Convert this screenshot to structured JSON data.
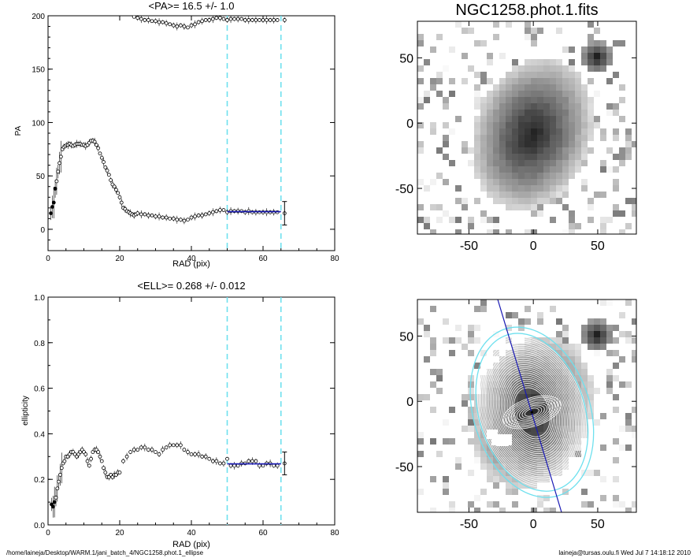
{
  "footer": {
    "path": "/home/laineja/Desktop/WARM.1/jani_batch_4/NGC1258.phot.1_ellipse",
    "user_time": "laineja@tursas.oulu.fi  Wed Jul  7 14:18:12 2010"
  },
  "images": {
    "title": "NGC1258.phot.1.fits",
    "ticks_x": [
      "-50",
      "0",
      "50"
    ],
    "ticks_y": [
      "50",
      "0",
      "-50"
    ]
  },
  "colors": {
    "markers": "#000000",
    "fit_line": "#1a1ab4",
    "marker_lines": "#6ee0ee",
    "axis": "#000000"
  },
  "chart_data": [
    {
      "type": "scatter",
      "title": "<PA>=  16.5 +/-   1.0",
      "xlabel": "RAD (pix)",
      "ylabel": "PA",
      "xlim": [
        0,
        80
      ],
      "ylim": [
        -20,
        200
      ],
      "x_ticks": [
        "0",
        "20",
        "40",
        "60",
        "80"
      ],
      "y_ticks": [
        "0",
        "50",
        "100",
        "150",
        "200"
      ],
      "vlines": [
        50,
        65
      ],
      "mean_line": {
        "x": [
          50,
          65
        ],
        "y": 16.5
      },
      "series": [
        {
          "points": [
            [
              0.8,
              15
            ],
            [
              1.2,
              21
            ],
            [
              1.6,
              25
            ],
            [
              2.0,
              38
            ],
            [
              2.4,
              45
            ],
            [
              2.8,
              54
            ],
            [
              3.2,
              62
            ],
            [
              3.6,
              68
            ],
            [
              4.0,
              75
            ],
            [
              4.4,
              77
            ],
            [
              4.8,
              78
            ],
            [
              5.2,
              79
            ],
            [
              5.6,
              79
            ],
            [
              6.0,
              80
            ],
            [
              6.5,
              79
            ],
            [
              7.0,
              78
            ],
            [
              7.5,
              79
            ],
            [
              8.0,
              80
            ],
            [
              8.5,
              80
            ],
            [
              9.0,
              80
            ],
            [
              9.5,
              79
            ],
            [
              10.0,
              79
            ],
            [
              10.5,
              78
            ],
            [
              11.0,
              79
            ],
            [
              11.5,
              81
            ],
            [
              12.0,
              83
            ],
            [
              12.5,
              83
            ],
            [
              13.0,
              82
            ],
            [
              13.5,
              79
            ],
            [
              14.0,
              76
            ],
            [
              14.5,
              71
            ],
            [
              15.0,
              67
            ],
            [
              15.5,
              63
            ],
            [
              16.0,
              58
            ],
            [
              16.5,
              55
            ],
            [
              17.0,
              51
            ],
            [
              17.5,
              46
            ],
            [
              18.0,
              42
            ],
            [
              18.5,
              40
            ],
            [
              19.0,
              37
            ],
            [
              19.5,
              34
            ],
            [
              20.0,
              30
            ],
            [
              20.5,
              25
            ],
            [
              21.0,
              20
            ],
            [
              21.5,
              19
            ],
            [
              22.0,
              17
            ],
            [
              22.5,
              16
            ],
            [
              23.0,
              15
            ],
            [
              23.5,
              14
            ],
            [
              24.0,
              13
            ],
            [
              24.5,
              14
            ],
            [
              25.0,
              15
            ],
            [
              26.0,
              14
            ],
            [
              27.0,
              14
            ],
            [
              28.0,
              13
            ],
            [
              29.0,
              13
            ],
            [
              30.0,
              12
            ],
            [
              31.0,
              12
            ],
            [
              32.0,
              11
            ],
            [
              33.0,
              11
            ],
            [
              34.0,
              10
            ],
            [
              35.0,
              10
            ],
            [
              36.0,
              9
            ],
            [
              37.0,
              9
            ],
            [
              38.0,
              8
            ],
            [
              39.0,
              9
            ],
            [
              40.0,
              11
            ],
            [
              41.0,
              12
            ],
            [
              42.0,
              13
            ],
            [
              43.0,
              13
            ],
            [
              44.0,
              14
            ],
            [
              45.0,
              15
            ],
            [
              46.0,
              16
            ],
            [
              47.0,
              17
            ],
            [
              48.0,
              18
            ],
            [
              49.0,
              18
            ],
            [
              50.0,
              16
            ],
            [
              51.0,
              17
            ],
            [
              52.0,
              17
            ],
            [
              53.0,
              17
            ],
            [
              54.0,
              17
            ],
            [
              55.0,
              16
            ],
            [
              56.0,
              17
            ],
            [
              57.0,
              16
            ],
            [
              58.0,
              16
            ],
            [
              59.0,
              16
            ],
            [
              60.0,
              16
            ],
            [
              61.0,
              16
            ],
            [
              62.0,
              16
            ],
            [
              63.0,
              16
            ],
            [
              64.0,
              16
            ],
            [
              66.0,
              15
            ]
          ]
        },
        {
          "points": [
            [
              24.0,
              199
            ],
            [
              25.0,
              198
            ],
            [
              26.0,
              197
            ],
            [
              27.0,
              196
            ],
            [
              28.0,
              196
            ],
            [
              29.0,
              195
            ],
            [
              30.0,
              195
            ],
            [
              31.0,
              194
            ],
            [
              32.0,
              194
            ],
            [
              33.0,
              193
            ],
            [
              34.0,
              192
            ],
            [
              35.0,
              191
            ],
            [
              36.0,
              190
            ],
            [
              37.0,
              191
            ],
            [
              38.0,
              190
            ],
            [
              39.0,
              189
            ],
            [
              40.0,
              191
            ],
            [
              41.0,
              192
            ],
            [
              42.0,
              194
            ],
            [
              43.0,
              195
            ],
            [
              44.0,
              196
            ],
            [
              45.0,
              196
            ],
            [
              46.0,
              197
            ],
            [
              47.0,
              198
            ],
            [
              48.0,
              198
            ],
            [
              49.0,
              197
            ],
            [
              50.0,
              196
            ],
            [
              51.0,
              197
            ],
            [
              52.0,
              197
            ],
            [
              53.0,
              197
            ],
            [
              54.0,
              197
            ],
            [
              55.0,
              196
            ],
            [
              56.0,
              196
            ],
            [
              57.0,
              196
            ],
            [
              58.0,
              196
            ],
            [
              59.0,
              196
            ],
            [
              60.0,
              196
            ],
            [
              61.0,
              196
            ],
            [
              62.0,
              196
            ],
            [
              63.0,
              196
            ],
            [
              64.0,
              196
            ],
            [
              66.0,
              196
            ]
          ]
        }
      ]
    },
    {
      "type": "scatter",
      "title": "<ELL>= 0.268 +/-  0.012",
      "xlabel": "RAD (pix)",
      "ylabel": "ellipticity",
      "xlim": [
        0,
        80
      ],
      "ylim": [
        0,
        1
      ],
      "x_ticks": [
        "0",
        "20",
        "40",
        "60",
        "80"
      ],
      "y_ticks": [
        "0.0",
        "0.2",
        "0.4",
        "0.6",
        "0.8",
        "1.0"
      ],
      "vlines": [
        50,
        65
      ],
      "mean_line": {
        "x": [
          50,
          65
        ],
        "y": 0.268
      },
      "series": [
        {
          "points": [
            [
              1.0,
              0.09
            ],
            [
              1.4,
              0.08
            ],
            [
              1.8,
              0.1
            ],
            [
              2.2,
              0.12
            ],
            [
              2.6,
              0.16
            ],
            [
              3.0,
              0.19
            ],
            [
              3.4,
              0.22
            ],
            [
              3.8,
              0.25
            ],
            [
              4.2,
              0.27
            ],
            [
              4.6,
              0.28
            ],
            [
              5.0,
              0.3
            ],
            [
              5.5,
              0.3
            ],
            [
              6.0,
              0.31
            ],
            [
              6.5,
              0.32
            ],
            [
              7.0,
              0.32
            ],
            [
              7.5,
              0.31
            ],
            [
              8.0,
              0.3
            ],
            [
              8.5,
              0.31
            ],
            [
              9.0,
              0.32
            ],
            [
              9.5,
              0.33
            ],
            [
              10.0,
              0.32
            ],
            [
              10.5,
              0.31
            ],
            [
              11.0,
              0.28
            ],
            [
              11.5,
              0.26
            ],
            [
              12.0,
              0.29
            ],
            [
              12.5,
              0.32
            ],
            [
              13.0,
              0.33
            ],
            [
              13.5,
              0.33
            ],
            [
              14.0,
              0.32
            ],
            [
              14.5,
              0.3
            ],
            [
              15.0,
              0.28
            ],
            [
              15.5,
              0.25
            ],
            [
              16.0,
              0.23
            ],
            [
              16.5,
              0.21
            ],
            [
              17.0,
              0.21
            ],
            [
              17.5,
              0.22
            ],
            [
              18.0,
              0.21
            ],
            [
              18.5,
              0.22
            ],
            [
              19.0,
              0.22
            ],
            [
              19.5,
              0.23
            ],
            [
              20.0,
              0.23
            ],
            [
              21.0,
              0.28
            ],
            [
              22.0,
              0.3
            ],
            [
              23.0,
              0.32
            ],
            [
              24.0,
              0.33
            ],
            [
              25.0,
              0.33
            ],
            [
              26.0,
              0.34
            ],
            [
              27.0,
              0.34
            ],
            [
              28.0,
              0.33
            ],
            [
              29.0,
              0.33
            ],
            [
              30.0,
              0.32
            ],
            [
              31.0,
              0.31
            ],
            [
              32.0,
              0.33
            ],
            [
              33.0,
              0.34
            ],
            [
              34.0,
              0.35
            ],
            [
              35.0,
              0.35
            ],
            [
              36.0,
              0.35
            ],
            [
              37.0,
              0.35
            ],
            [
              38.0,
              0.33
            ],
            [
              39.0,
              0.32
            ],
            [
              40.0,
              0.31
            ],
            [
              41.0,
              0.31
            ],
            [
              42.0,
              0.31
            ],
            [
              43.0,
              0.3
            ],
            [
              44.0,
              0.3
            ],
            [
              45.0,
              0.29
            ],
            [
              46.0,
              0.28
            ],
            [
              47.0,
              0.28
            ],
            [
              48.0,
              0.27
            ],
            [
              49.0,
              0.27
            ],
            [
              50.0,
              0.29
            ],
            [
              51.0,
              0.26
            ],
            [
              52.0,
              0.26
            ],
            [
              53.0,
              0.26
            ],
            [
              54.0,
              0.27
            ],
            [
              55.0,
              0.27
            ],
            [
              56.0,
              0.28
            ],
            [
              57.0,
              0.28
            ],
            [
              58.0,
              0.28
            ],
            [
              59.0,
              0.26
            ],
            [
              60.0,
              0.26
            ],
            [
              61.0,
              0.27
            ],
            [
              62.0,
              0.27
            ],
            [
              63.0,
              0.26
            ],
            [
              64.0,
              0.26
            ],
            [
              66.0,
              0.27
            ]
          ]
        }
      ]
    }
  ]
}
